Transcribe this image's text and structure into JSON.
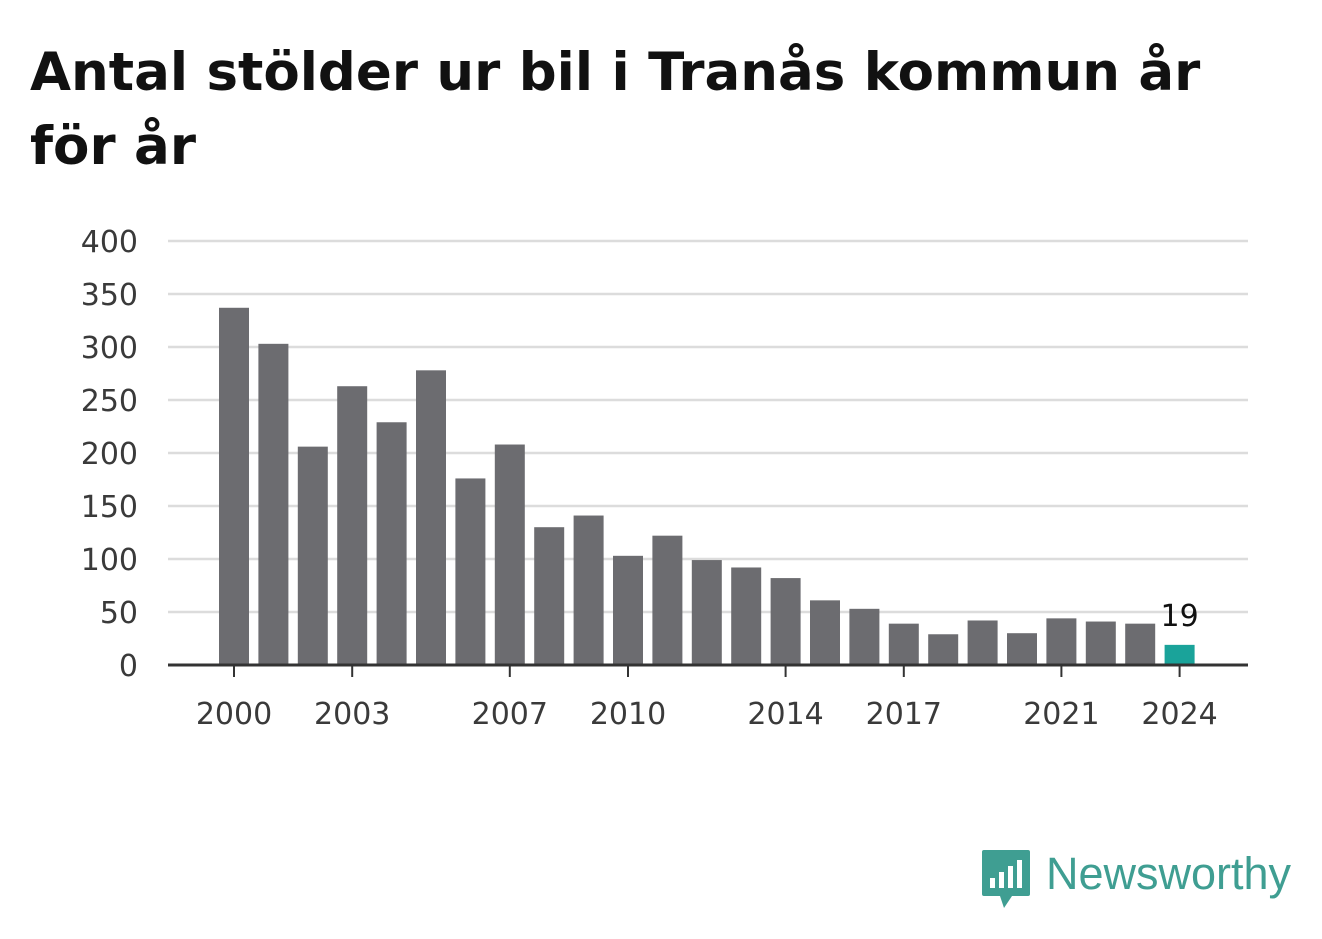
{
  "title": "Antal stölder ur bil i Tranås kommun år för år",
  "brand": {
    "name": "Newsworthy",
    "icon": "bar-chart-speech-bubble-icon",
    "color": "#3f9e92"
  },
  "chart_data": {
    "type": "bar",
    "title": "Antal stölder ur bil i Tranås kommun år för år",
    "xlabel": "",
    "ylabel": "",
    "categories": [
      "2000",
      "2001",
      "2002",
      "2003",
      "2004",
      "2005",
      "2006",
      "2007",
      "2008",
      "2009",
      "2010",
      "2011",
      "2012",
      "2013",
      "2014",
      "2015",
      "2016",
      "2017",
      "2018",
      "2019",
      "2020",
      "2021",
      "2022",
      "2023",
      "2024"
    ],
    "values": [
      337,
      303,
      206,
      263,
      229,
      278,
      176,
      208,
      130,
      141,
      103,
      122,
      99,
      92,
      82,
      61,
      53,
      39,
      29,
      42,
      30,
      44,
      41,
      39,
      19
    ],
    "x_tick_labels": [
      "2000",
      "2003",
      "2007",
      "2010",
      "2014",
      "2017",
      "2021",
      "2024"
    ],
    "y_ticks": [
      0,
      50,
      100,
      150,
      200,
      250,
      300,
      350,
      400
    ],
    "ylim": [
      0,
      400
    ],
    "grid": "horizontal",
    "legend": "none",
    "highlight": {
      "category": "2024",
      "label": "19"
    },
    "colors": {
      "bar": "#6c6c70",
      "highlight": "#1aa39a",
      "grid": "#dcdcdc",
      "axis": "#333333"
    }
  }
}
